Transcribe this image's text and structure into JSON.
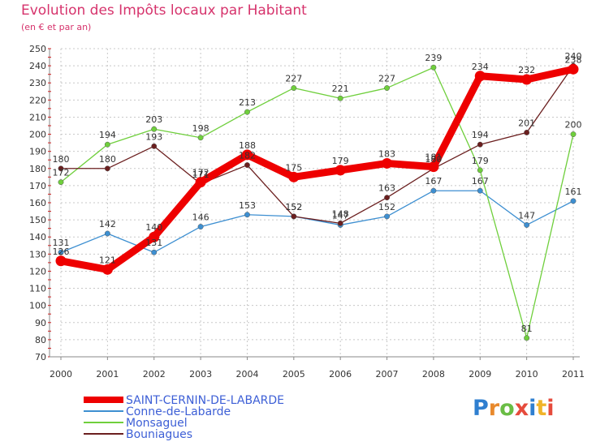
{
  "chart_data": {
    "type": "line",
    "title": "Evolution des Impôts locaux par Habitant",
    "subtitle": "(en € et par an)",
    "x": [
      "2000",
      "2001",
      "2002",
      "2003",
      "2004",
      "2005",
      "2006",
      "2007",
      "2008",
      "2009",
      "2010",
      "2011"
    ],
    "ylim": [
      70,
      250
    ],
    "yticks": [
      70,
      80,
      90,
      100,
      110,
      120,
      130,
      140,
      150,
      160,
      170,
      180,
      190,
      200,
      210,
      220,
      230,
      240,
      250
    ],
    "grid": true,
    "series": [
      {
        "name": "SAINT-CERNIN-DE-LABARDE",
        "color": "#ee0000",
        "values": [
          126,
          121,
          140,
          172,
          188,
          175,
          179,
          183,
          181,
          234,
          232,
          238
        ]
      },
      {
        "name": "Conne-de-Labarde",
        "color": "#3d8fd1",
        "values": [
          131,
          142,
          131,
          146,
          153,
          152,
          147,
          152,
          167,
          167,
          147,
          161
        ]
      },
      {
        "name": "Monsaguel",
        "color": "#6fcf3c",
        "values": [
          172,
          194,
          203,
          198,
          213,
          227,
          221,
          227,
          239,
          179,
          81,
          200
        ]
      },
      {
        "name": "Bouniagues",
        "color": "#6b1f1f",
        "values": [
          180,
          180,
          193,
          171,
          182,
          152,
          148,
          163,
          180,
          194,
          201,
          240
        ]
      }
    ],
    "legend_position": "bottom-left"
  },
  "branding": {
    "logo_letters": [
      "P",
      "r",
      "o",
      "x",
      "i",
      "t",
      "i"
    ]
  }
}
